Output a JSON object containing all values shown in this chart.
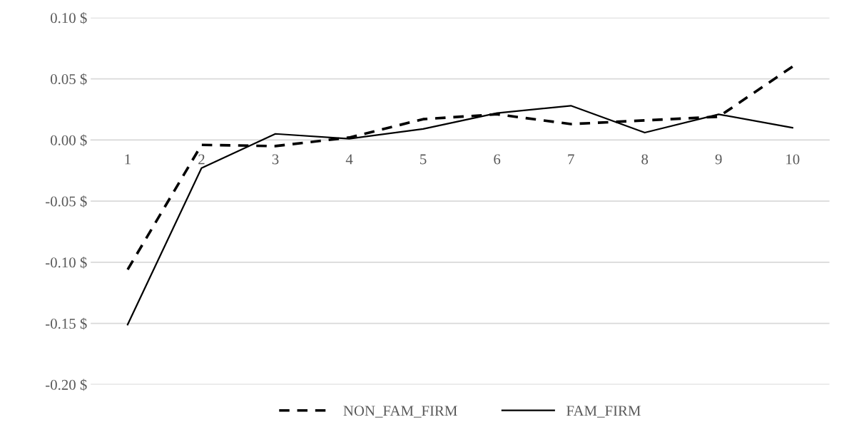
{
  "chart_data": {
    "type": "line",
    "categories": [
      "1",
      "2",
      "3",
      "4",
      "5",
      "6",
      "7",
      "8",
      "9",
      "10"
    ],
    "series": [
      {
        "name": "NON_FAM_FIRM",
        "color": "#000000",
        "line_style": "dashed",
        "values": [
          -0.106,
          -0.004,
          -0.005,
          0.002,
          0.017,
          0.021,
          0.013,
          0.016,
          0.019,
          0.06
        ]
      },
      {
        "name": "FAM_FIRM",
        "color": "#000000",
        "line_style": "solid",
        "values": [
          -0.151,
          -0.023,
          0.005,
          0.001,
          0.009,
          0.022,
          0.028,
          0.006,
          0.021,
          0.01
        ]
      }
    ],
    "ylim": [
      -0.2,
      0.1
    ],
    "yticks": [
      {
        "value": -0.2,
        "label": "-0.20 $"
      },
      {
        "value": -0.15,
        "label": "-0.15 $"
      },
      {
        "value": -0.1,
        "label": "-0.10 $"
      },
      {
        "value": -0.05,
        "label": "-0.05 $"
      },
      {
        "value": 0,
        "label": "0.00 $"
      },
      {
        "value": 0.05,
        "label": "0.05 $"
      },
      {
        "value": 0.1,
        "label": "0.10 $"
      }
    ],
    "grid": "y",
    "legend": "bottom",
    "marker": "none"
  }
}
